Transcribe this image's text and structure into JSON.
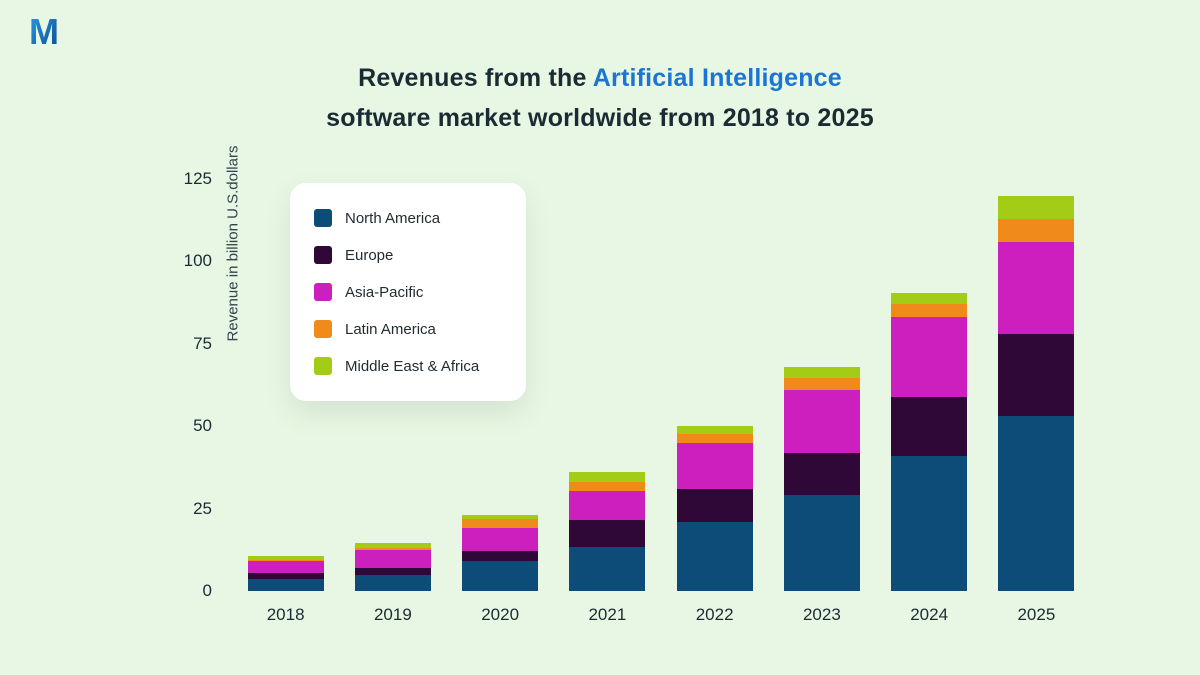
{
  "logo": {
    "letter": "M"
  },
  "title": {
    "line1_prefix": "Revenues from the ",
    "line1_highlight": "Artificial Intelligence",
    "line2": "software market worldwide from 2018 to 2025",
    "highlight_color": "#1b75d2"
  },
  "chart_data": {
    "type": "bar",
    "stacked": true,
    "title": "Revenues from the Artificial Intelligence software market worldwide from 2018 to 2025",
    "ylabel": "Revenue in billion U.S.dollars",
    "xlabel": "",
    "ylim": [
      0,
      125
    ],
    "yticks": [
      0,
      25,
      50,
      75,
      100,
      125
    ],
    "grid": false,
    "legend_position": "upper-left",
    "categories": [
      "2018",
      "2019",
      "2020",
      "2021",
      "2022",
      "2023",
      "2024",
      "2025"
    ],
    "series": [
      {
        "name": "North America",
        "color": "#0d4c78",
        "values": [
          3.5,
          5,
          9,
          13.5,
          21,
          29,
          41,
          53
        ]
      },
      {
        "name": "Europe",
        "color": "#300838",
        "values": [
          2,
          2,
          3,
          8,
          10,
          13,
          18,
          25
        ]
      },
      {
        "name": "Asia-Pacific",
        "color": "#cd1ebe",
        "values": [
          3.5,
          5.5,
          7,
          9,
          14,
          19,
          24,
          28
        ]
      },
      {
        "name": "Latin America",
        "color": "#ef8a1b",
        "values": [
          0.5,
          0.5,
          3,
          2.5,
          2.5,
          3.5,
          4,
          7
        ]
      },
      {
        "name": "Middle East & Africa",
        "color": "#a2cc15",
        "values": [
          1,
          1.5,
          1,
          3,
          2.5,
          3.5,
          3.5,
          7
        ]
      }
    ]
  }
}
